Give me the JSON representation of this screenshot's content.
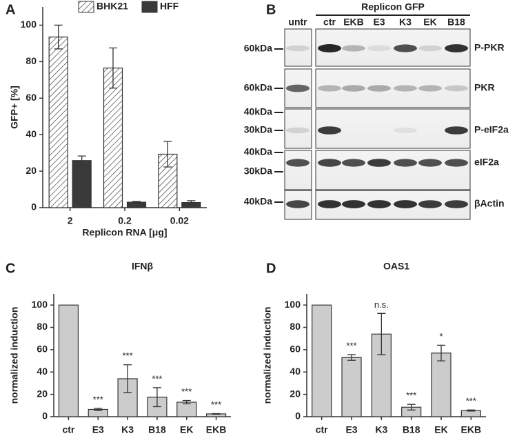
{
  "chart_data": [
    {
      "type": "bar",
      "panel": "A",
      "categories": [
        "2",
        "0.2",
        "0.02"
      ],
      "series": [
        {
          "name": "BHK21",
          "color": "#ffffff",
          "pattern": "hatch",
          "values": [
            93.5,
            76.5,
            29.3
          ],
          "errors": [
            6.5,
            11,
            7
          ]
        },
        {
          "name": "HFF",
          "color": "#3a3a3a",
          "values": [
            25.8,
            3,
            2.8
          ],
          "errors": [
            2.5,
            0.4,
            1
          ]
        }
      ],
      "ylabel": "GFP+ [%]",
      "xlabel": "Replicon RNA [μg]",
      "ylim": [
        0,
        110
      ],
      "yticks": [
        0,
        20,
        40,
        60,
        80,
        100
      ],
      "legend": "top"
    },
    {
      "type": "bar",
      "panel": "C",
      "title": "IFNβ",
      "categories": [
        "ctr",
        "E3",
        "K3",
        "B18",
        "EK",
        "EKB"
      ],
      "values": [
        100,
        6.5,
        34,
        17.5,
        13,
        2.5
      ],
      "errors": [
        null,
        1,
        12.5,
        8.5,
        1.5,
        0.3
      ],
      "annotations": [
        null,
        "***",
        "***",
        "***",
        "***",
        "***"
      ],
      "color": "#cccccc",
      "ylabel": "normalized induction",
      "ylim": [
        0,
        110
      ],
      "yticks": [
        0,
        20,
        40,
        60,
        80,
        100
      ]
    },
    {
      "type": "bar",
      "panel": "D",
      "title": "OAS1",
      "categories": [
        "ctr",
        "E3",
        "K3",
        "B18",
        "EK",
        "EKB"
      ],
      "values": [
        100,
        53,
        74,
        8.5,
        57,
        5.5
      ],
      "errors": [
        null,
        2.5,
        18.5,
        2.5,
        7,
        0.5
      ],
      "annotations": [
        null,
        "***",
        "n.s.",
        "***",
        "*",
        "***"
      ],
      "color": "#cccccc",
      "ylabel": "normalized induction",
      "ylim": [
        0,
        110
      ],
      "yticks": [
        0,
        20,
        40,
        60,
        80,
        100
      ]
    }
  ],
  "blot": {
    "panel": "B",
    "untreated": "untr",
    "group": "Replicon GFP",
    "lanes": [
      "ctr",
      "EKB",
      "E3",
      "K3",
      "EK",
      "B18"
    ],
    "rows": [
      {
        "label": "P-PKR",
        "markers": [
          "60kDa"
        ]
      },
      {
        "label": "PKR",
        "markers": [
          "60kDa"
        ]
      },
      {
        "label": "P-eIF2a",
        "markers": [
          "40kDa",
          "30kDa"
        ]
      },
      {
        "label": "eIF2a",
        "markers": [
          "40kDa",
          "30kDa"
        ]
      },
      {
        "label": "βActin",
        "markers": [
          "40kDa"
        ]
      }
    ]
  }
}
